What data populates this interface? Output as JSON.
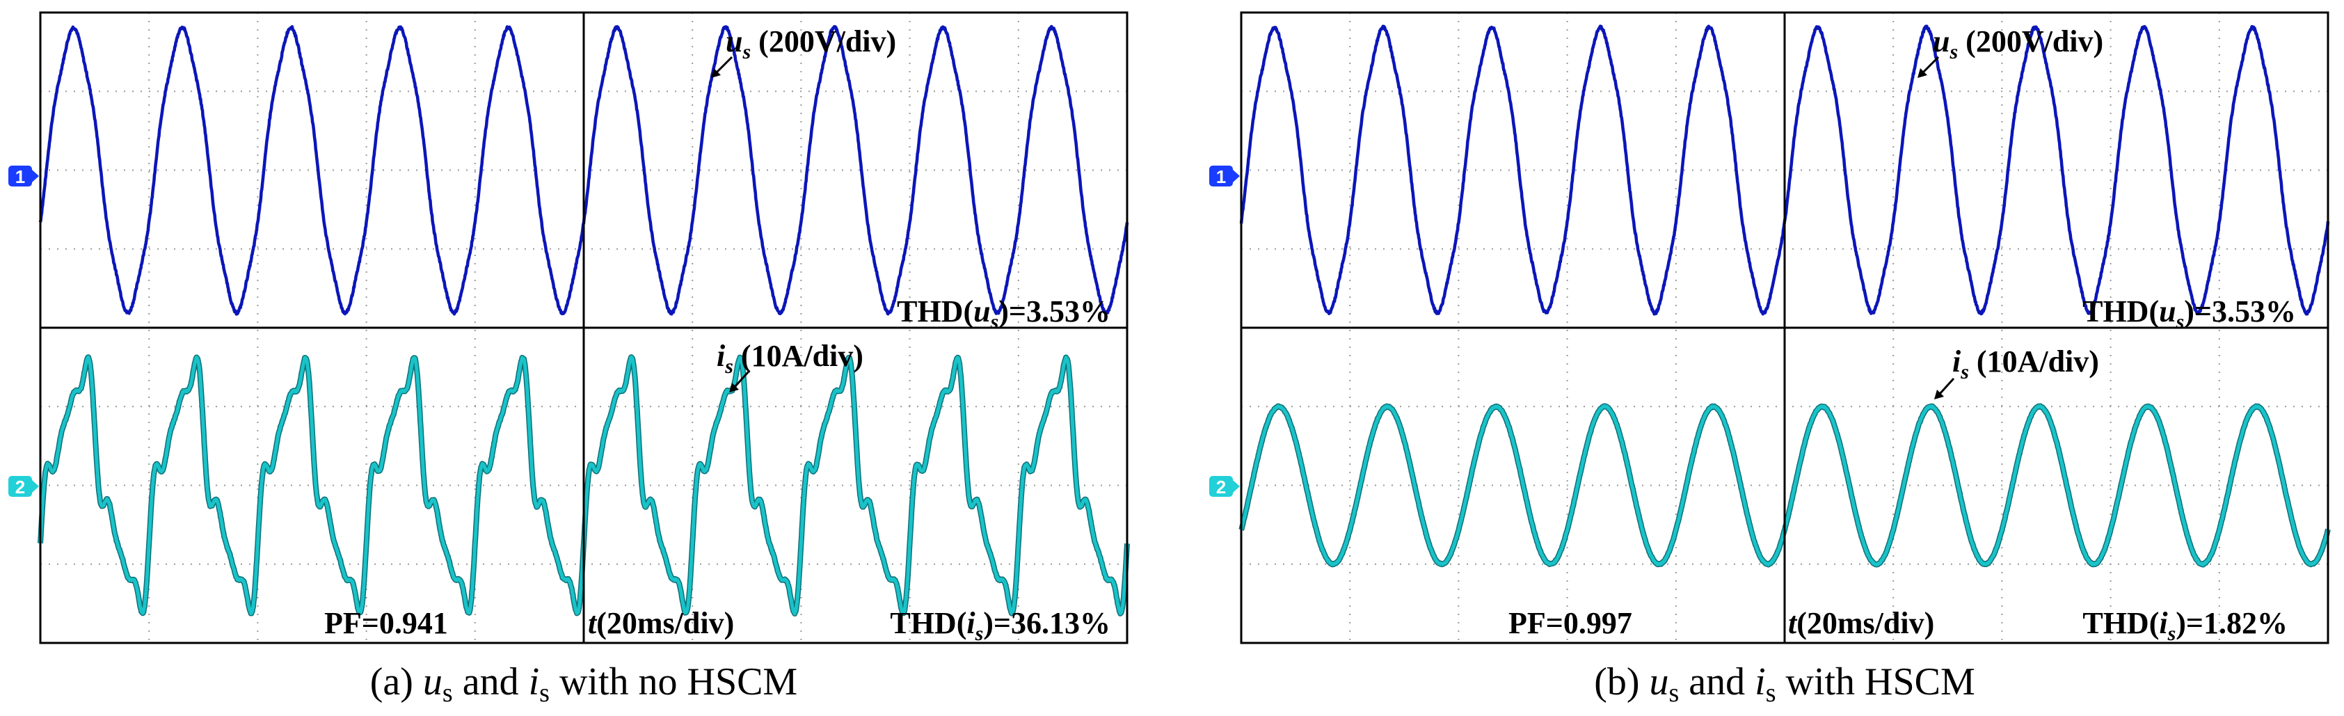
{
  "colors": {
    "voltage": "#0b16b8",
    "current": "#19c3c8",
    "current_edge": "#0f6f78",
    "grid": "#9a9a9a",
    "frame": "#000000",
    "marker_ch1": "#1a3cff",
    "marker_ch2": "#22d0d8"
  },
  "chart_data": [
    {
      "type": "line",
      "caption": {
        "prefix": "(a) ",
        "u": "u",
        "and": " and ",
        "i": "i",
        "suffix": " with no HSCM",
        "sub": "s"
      },
      "grid": true,
      "grid_divisions": {
        "x": 10,
        "y": 8
      },
      "channels": {
        "ch1": {
          "marker": "1",
          "signal": "us",
          "label_var": "u",
          "label_sub": "s",
          "scale": " (200V/div)",
          "amplitude_div": 1.75
        },
        "ch2": {
          "marker": "2",
          "signal": "is",
          "label_var": "i",
          "label_sub": "s",
          "scale": " (10A/div)",
          "amplitude_div": 1.5
        }
      },
      "time_base": "20ms/div",
      "time_label": {
        "var": "t",
        "text": "(20ms/div)"
      },
      "frequency_hz": 50,
      "harmonics_current": [
        {
          "n": 1,
          "amp": 1.0
        },
        {
          "n": 3,
          "amp": 0.22
        },
        {
          "n": 5,
          "amp": 0.18
        },
        {
          "n": 7,
          "amp": 0.09
        }
      ],
      "thd_u": {
        "prefix": "THD(",
        "var": "u",
        "sub": "s",
        "suffix": ")=3.53%"
      },
      "thd_i": {
        "prefix": "THD(",
        "var": "i",
        "sub": "s",
        "suffix": ")=36.13%"
      },
      "pf": "PF=0.941"
    },
    {
      "type": "line",
      "caption": {
        "prefix": "(b) ",
        "u": "u",
        "and": " and ",
        "i": "i",
        "suffix": " with HSCM",
        "sub": "s"
      },
      "grid": true,
      "grid_divisions": {
        "x": 10,
        "y": 8
      },
      "channels": {
        "ch1": {
          "marker": "1",
          "signal": "us",
          "label_var": "u",
          "label_sub": "s",
          "scale": " (200V/div)",
          "amplitude_div": 1.75
        },
        "ch2": {
          "marker": "2",
          "signal": "is",
          "label_var": "i",
          "label_sub": "s",
          "scale": " (10A/div)",
          "amplitude_div": 1.0
        }
      },
      "time_base": "20ms/div",
      "time_label": {
        "var": "t",
        "text": "(20ms/div)"
      },
      "frequency_hz": 50,
      "harmonics_current": [
        {
          "n": 1,
          "amp": 1.0
        }
      ],
      "thd_u": {
        "prefix": "THD(",
        "var": "u",
        "sub": "s",
        "suffix": ")=3.53%"
      },
      "thd_i": {
        "prefix": "THD(",
        "var": "i",
        "sub": "s",
        "suffix": ")=1.82%"
      },
      "pf": "PF=0.997"
    }
  ]
}
